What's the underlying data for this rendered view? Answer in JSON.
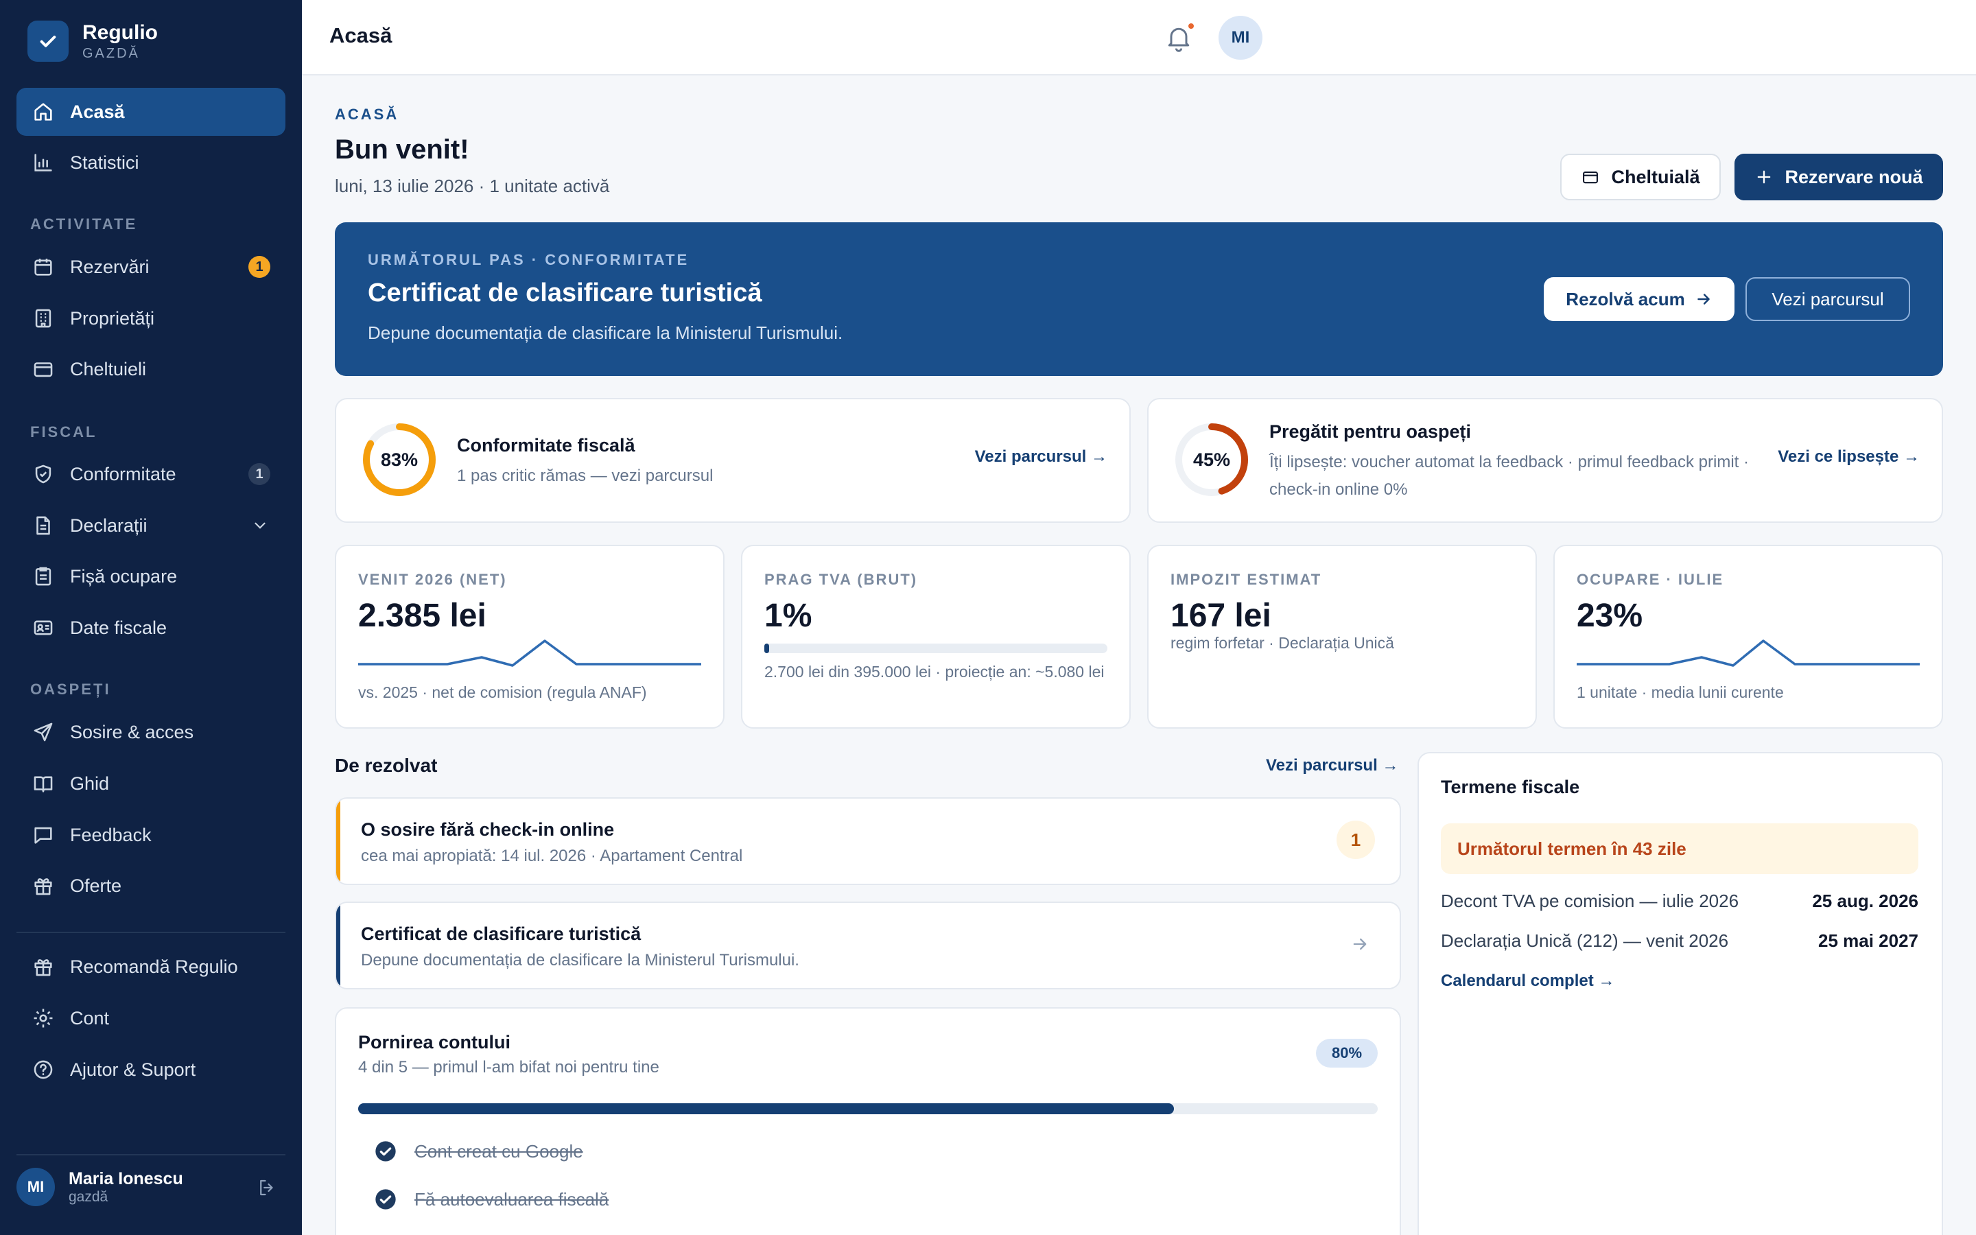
{
  "app": {
    "name": "Regulio",
    "role": "GAZDĂ"
  },
  "sidebar": {
    "top_items": [
      {
        "label": "Acasă"
      },
      {
        "label": "Statistici"
      }
    ],
    "sections": [
      {
        "label": "ACTIVITATE",
        "items": [
          {
            "label": "Rezervări",
            "badge": "1"
          },
          {
            "label": "Proprietăți"
          },
          {
            "label": "Cheltuieli"
          }
        ]
      },
      {
        "label": "FISCAL",
        "items": [
          {
            "label": "Conformitate",
            "badge": "1"
          },
          {
            "label": "Declarații"
          },
          {
            "label": "Fișă ocupare"
          },
          {
            "label": "Date fiscale"
          }
        ]
      },
      {
        "label": "OASPEȚI",
        "items": [
          {
            "label": "Sosire & acces"
          },
          {
            "label": "Ghid"
          },
          {
            "label": "Feedback"
          },
          {
            "label": "Oferte"
          }
        ]
      }
    ],
    "bottom_items": [
      {
        "label": "Recomandă Regulio"
      },
      {
        "label": "Cont"
      },
      {
        "label": "Ajutor & Suport"
      }
    ],
    "user": {
      "initials": "MI",
      "name": "Maria Ionescu",
      "role": "gazdă"
    }
  },
  "topbar": {
    "title": "Acasă",
    "avatar_initials": "MI"
  },
  "header": {
    "eyebrow": "ACASĂ",
    "title": "Bun venit!",
    "date_line": "luni, 13 iulie 2026 · 1 unitate activă",
    "btn_expense": "Cheltuială",
    "btn_new_booking": "Rezervare nouă"
  },
  "hero": {
    "eyebrow": "URMĂTORUL PAS · CONFORMITATE",
    "title": "Certificat de clasificare turistică",
    "desc": "Depune documentația de clasificare la Ministerul Turismului.",
    "btn_primary": "Rezolvă acum",
    "btn_secondary": "Vezi parcursul"
  },
  "progress_cards": [
    {
      "percent_label": "83%",
      "value": 0.83,
      "color": "#f59e0b",
      "title": "Conformitate fiscală",
      "sub": "1 pas critic rămas — vezi parcursul",
      "link": "Vezi parcursul →"
    },
    {
      "percent_label": "45%",
      "value": 0.45,
      "color": "#c2410c",
      "title": "Pregătit pentru oaspeți",
      "sub": "Îți lipsește: voucher automat la feedback · primul feedback primit · check-in online 0%",
      "link": "Vezi ce lipsește →"
    }
  ],
  "stats": [
    {
      "label": "VENIT 2026 (NET)",
      "value": "2.385 lei",
      "note": "vs. 2025 · net de comision (regula ANAF)"
    },
    {
      "label": "PRAG TVA (BRUT)",
      "value": "1%",
      "progress": 0.01,
      "note": "2.700 lei din 395.000 lei · proiecție an: ~5.080 lei"
    },
    {
      "label": "IMPOZIT ESTIMAT",
      "value": "167 lei",
      "note": "regim forfetar · Declarația Unică"
    },
    {
      "label": "OCUPARE · IULIE",
      "value": "23%",
      "note": "1 unitate · media lunii curente"
    }
  ],
  "todo": {
    "title": "De rezolvat",
    "link": "Vezi parcursul →",
    "tasks": [
      {
        "title": "O sosire fără check-in online",
        "sub": "cea mai apropiată: 14 iul. 2026 · Apartament Central",
        "count": "1",
        "accent": "#f59e0b"
      },
      {
        "title": "Certificat de clasificare turistică",
        "sub": "Depune documentația de clasificare la Ministerul Turismului.",
        "accent": "#153f73"
      }
    ]
  },
  "onboarding": {
    "title": "Pornirea contului",
    "sub": "4 din 5 — primul l-am bifat noi pentru tine",
    "percent_label": "80%",
    "progress": 0.8,
    "steps": [
      {
        "label": "Cont creat cu Google",
        "done": true
      },
      {
        "label": "Fă autoevaluarea fiscală",
        "done": true
      }
    ]
  },
  "deadlines": {
    "title": "Termene fiscale",
    "banner": "Următorul termen în 43 zile",
    "rows": [
      {
        "name": "Decont TVA pe comision — iulie 2026",
        "date": "25 aug. 2026"
      },
      {
        "name": "Declarația Unică (212) — venit 2026",
        "date": "25 mai 2027"
      }
    ],
    "link": "Calendarul complet →"
  }
}
